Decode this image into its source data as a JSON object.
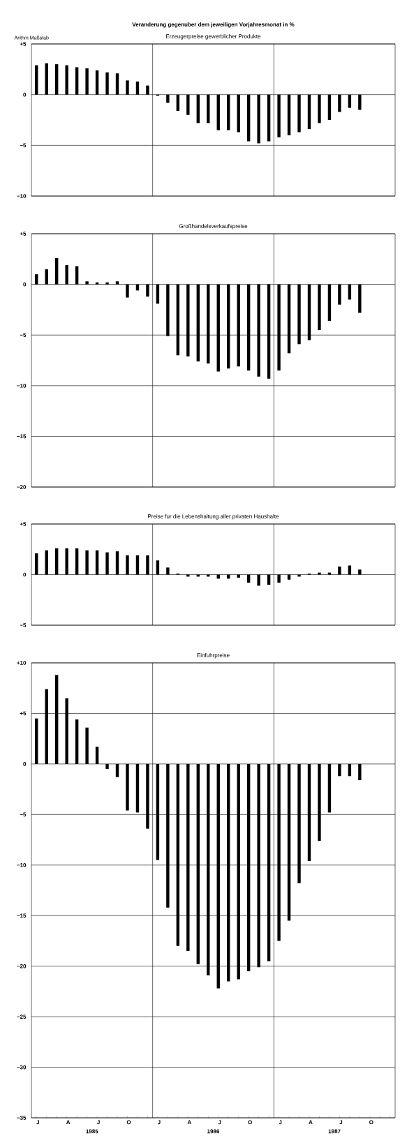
{
  "chart_data": [
    {
      "type": "bar",
      "title": "Erzeugerpreise gewerblicher Produkte",
      "annotations": [
        "Veranderung gegenuber dem jeweiligen Vorjahresmonat in %",
        "Arithm Maßstab"
      ],
      "values": [
        2.9,
        3.1,
        3.0,
        2.9,
        2.7,
        2.6,
        2.4,
        2.2,
        2.1,
        1.4,
        1.3,
        0.9,
        -0.1,
        -0.8,
        -1.6,
        -2.0,
        -2.8,
        -2.8,
        -3.5,
        -3.5,
        -3.7,
        -4.6,
        -4.8,
        -4.6,
        -4.2,
        -4.0,
        -3.7,
        -3.4,
        -2.8,
        -2.5,
        -1.7,
        -1.3,
        -1.5,
        null,
        null,
        null
      ],
      "color": "#000000",
      "ylim": [
        -10,
        5
      ],
      "yticks": [
        {
          "value": 5,
          "label": "+5"
        },
        0,
        {
          "value": -5,
          "label": "−5"
        },
        {
          "value": -10,
          "label": "−10"
        }
      ],
      "grid": true,
      "tick_labels": "y"
    },
    {
      "type": "bar",
      "title": "Großhandelsverkaufspreise",
      "values": [
        1.0,
        1.5,
        2.6,
        1.9,
        1.8,
        0.3,
        0.2,
        0.2,
        0.3,
        -1.3,
        -0.6,
        -1.2,
        -1.9,
        -5.1,
        -7.0,
        -7.1,
        -7.6,
        -7.8,
        -8.6,
        -8.3,
        -8.1,
        -8.5,
        -9.1,
        -9.3,
        -8.5,
        -6.8,
        -5.9,
        -5.5,
        -4.5,
        -3.6,
        -2.0,
        -1.5,
        -2.8,
        null,
        null,
        null
      ],
      "color": "#000000",
      "ylim": [
        -20,
        5
      ],
      "yticks": [
        {
          "value": 5,
          "label": "+5"
        },
        0,
        {
          "value": -5,
          "label": "−5"
        },
        {
          "value": -10,
          "label": "−10"
        },
        {
          "value": -15,
          "label": "−15"
        },
        {
          "value": -20,
          "label": "−20"
        }
      ],
      "grid": true,
      "tick_labels": "y"
    },
    {
      "type": "bar",
      "title": "Preise fur die Lebenshaltung aller privaten Haushalte",
      "values": [
        2.1,
        2.4,
        2.6,
        2.6,
        2.6,
        2.4,
        2.4,
        2.2,
        2.3,
        1.9,
        1.9,
        1.9,
        1.4,
        0.7,
        0.1,
        -0.2,
        -0.2,
        -0.2,
        -0.4,
        -0.4,
        -0.3,
        -0.8,
        -1.1,
        -1.0,
        -0.8,
        -0.5,
        -0.2,
        0.1,
        0.2,
        0.2,
        0.8,
        0.9,
        0.5,
        null,
        null,
        null
      ],
      "color": "#000000",
      "ylim": [
        -5,
        5
      ],
      "yticks": [
        {
          "value": 5,
          "label": "+5"
        },
        0,
        {
          "value": -5,
          "label": "−5"
        }
      ],
      "grid": true,
      "tick_labels": "y"
    },
    {
      "type": "bar",
      "title": "Einfuhrpreise",
      "annotations": [
        "1985",
        "1986",
        "1987"
      ],
      "categories": [
        "J",
        null,
        null,
        "A",
        null,
        null,
        "J",
        null,
        null,
        "O",
        null,
        null,
        "J",
        null,
        null,
        "A",
        null,
        null,
        "J",
        null,
        null,
        "O",
        null,
        null,
        "J",
        null,
        null,
        "A",
        null,
        null,
        "J",
        null,
        null,
        "O",
        null,
        null
      ],
      "values": [
        4.5,
        7.4,
        8.8,
        6.5,
        4.4,
        3.6,
        1.7,
        -0.5,
        -1.3,
        -4.6,
        -4.8,
        -6.4,
        -9.5,
        -14.2,
        -18.0,
        -18.5,
        -19.8,
        -20.9,
        -22.2,
        -21.5,
        -21.3,
        -20.5,
        -20.1,
        -19.5,
        -17.5,
        -15.5,
        -11.8,
        -9.6,
        -7.6,
        -4.8,
        -1.2,
        -1.2,
        -1.6,
        null,
        null,
        null
      ],
      "color": "#000000",
      "ylim": [
        -35,
        10
      ],
      "yticks": [
        {
          "value": 10,
          "label": "+10"
        },
        {
          "value": 5,
          "label": "+5"
        },
        0,
        {
          "value": -5,
          "label": "−5"
        },
        {
          "value": -10,
          "label": "−10"
        },
        {
          "value": -15,
          "label": "−15"
        },
        {
          "value": -20,
          "label": "−20"
        },
        {
          "value": -25,
          "label": "−25"
        },
        {
          "value": -30,
          "label": "−30"
        },
        {
          "value": -35,
          "label": "−35"
        }
      ],
      "grid": true
    }
  ]
}
